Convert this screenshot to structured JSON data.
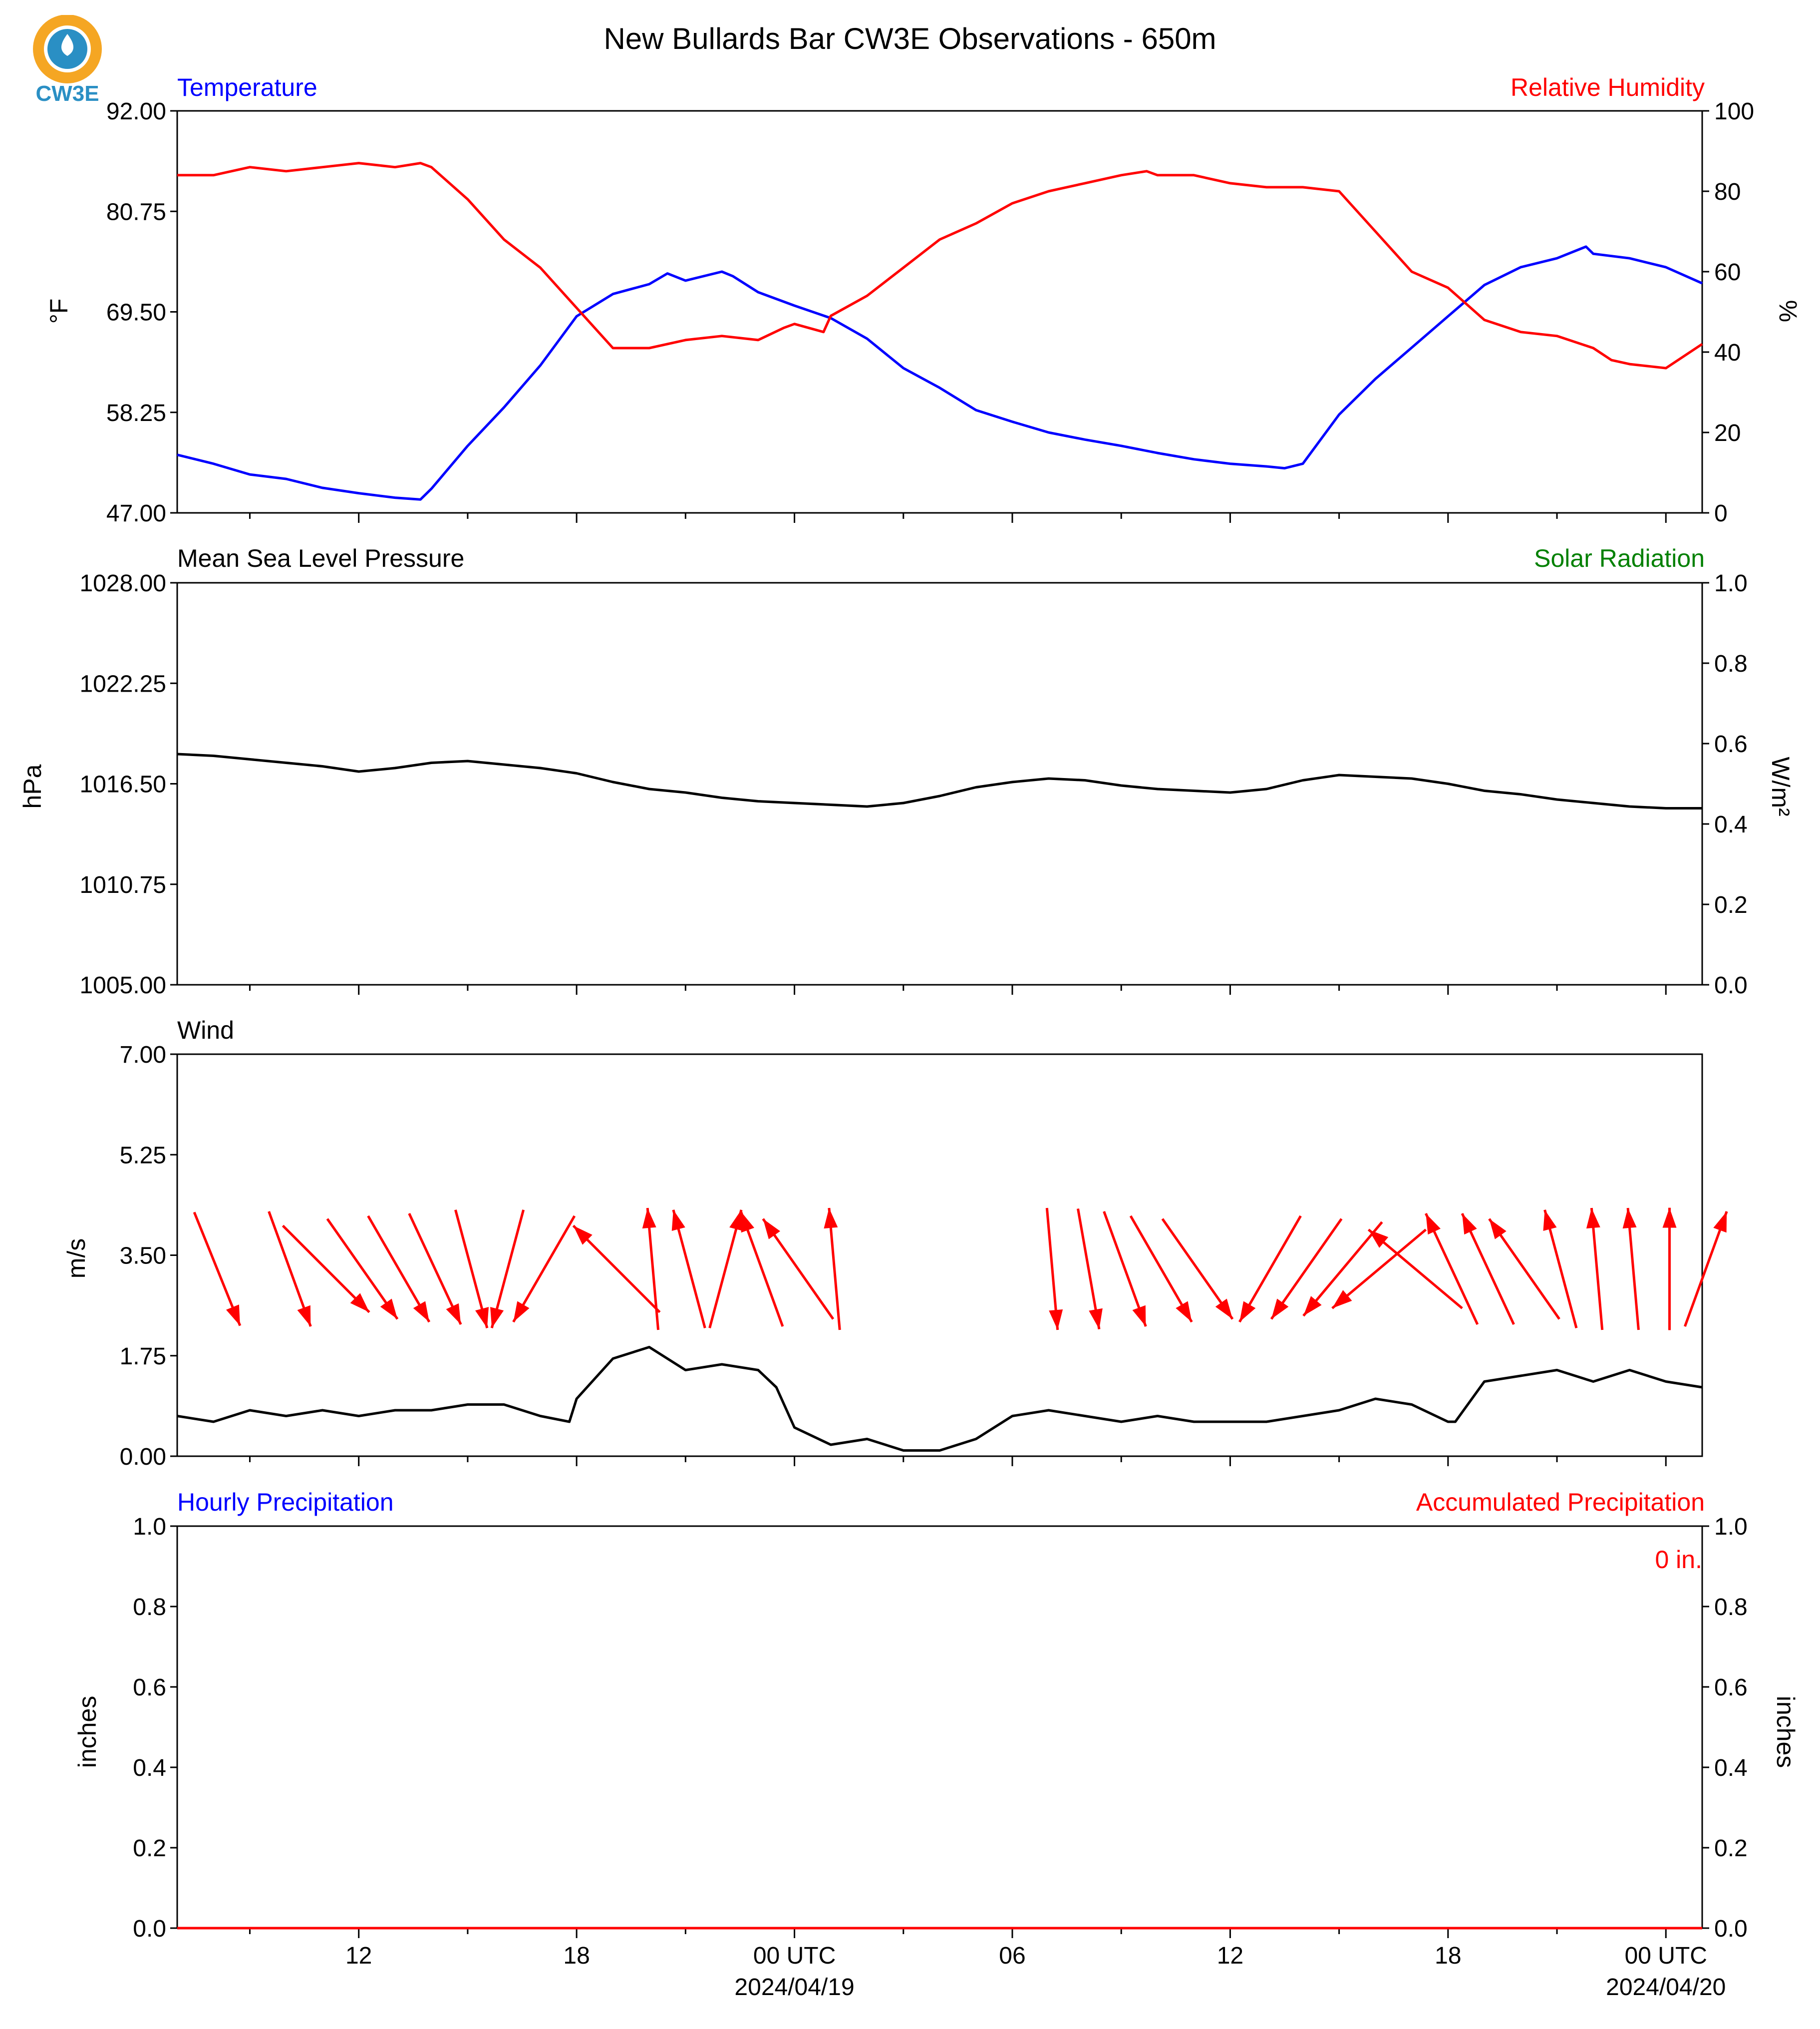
{
  "logo": {
    "text": "CW3E",
    "colors": {
      "ring": "#f5a623",
      "drop": "#2a8fc4",
      "text": "#2a8fc4"
    }
  },
  "title": "New Bullards Bar CW3E Observations - 650m",
  "colors": {
    "blue": "#0000ff",
    "red": "#ff0000",
    "black": "#000000",
    "green": "#008000",
    "bg": "#ffffff"
  },
  "panels": {
    "temp_rh": {
      "left_title": "Temperature",
      "right_title": "Relative Humidity",
      "left_ylabel": "°F",
      "right_ylabel": "%"
    },
    "pressure": {
      "left_title": "Mean Sea Level Pressure",
      "right_title": "Solar Radiation",
      "left_ylabel": "hPa",
      "right_ylabel": "W/m²"
    },
    "wind": {
      "left_title": "Wind",
      "left_ylabel": "m/s"
    },
    "precip": {
      "left_title": "Hourly Precipitation",
      "right_title": "Accumulated Precipitation",
      "left_ylabel": "inches",
      "right_ylabel": "inches",
      "accumulated_text": "0 in."
    }
  },
  "x_axis": {
    "tick_labels": [
      {
        "hour": 12,
        "label": "12"
      },
      {
        "hour": 18,
        "label": "18"
      },
      {
        "hour": 24,
        "label": "00 UTC",
        "sub": "2024/04/19"
      },
      {
        "hour": 30,
        "label": "06"
      },
      {
        "hour": 36,
        "label": "12"
      },
      {
        "hour": 42,
        "label": "18"
      },
      {
        "hour": 48,
        "label": "00 UTC",
        "sub": "2024/04/20"
      }
    ]
  },
  "chart_data": [
    {
      "type": "line",
      "panel": "temp_rh",
      "x_unit": "hours since 2024/04/18 00 UTC",
      "xlim": [
        7,
        49
      ],
      "ylim_left": [
        47.0,
        92.0
      ],
      "yticks_left": [
        "47.00",
        "58.25",
        "69.50",
        "80.75",
        "92.00"
      ],
      "ylim_right": [
        0,
        100
      ],
      "yticks_right": [
        "0",
        "20",
        "40",
        "60",
        "80",
        "100"
      ],
      "series": [
        {
          "name": "Temperature",
          "axis": "left",
          "color": "#0000ff",
          "x": [
            7,
            8,
            9,
            10,
            11,
            12,
            13,
            13.7,
            14,
            15,
            16,
            17,
            18,
            19,
            20,
            20.5,
            21,
            22,
            22.3,
            23,
            24,
            25,
            26,
            27,
            28,
            29,
            30,
            31,
            32,
            33,
            34,
            35,
            36,
            37,
            37.5,
            38,
            39,
            40,
            41,
            42,
            43,
            44,
            45,
            45.8,
            46,
            47,
            48,
            49
          ],
          "y": [
            53.5,
            52.5,
            51.3,
            50.8,
            49.8,
            49.2,
            48.7,
            48.5,
            49.7,
            54.5,
            58.8,
            63.5,
            69.0,
            71.5,
            72.6,
            73.8,
            73.0,
            74.0,
            73.5,
            71.7,
            70.2,
            68.8,
            66.5,
            63.2,
            61.0,
            58.5,
            57.2,
            56.0,
            55.2,
            54.5,
            53.7,
            53.0,
            52.5,
            52.2,
            52.0,
            52.5,
            58.0,
            62.0,
            65.5,
            69.0,
            72.5,
            74.5,
            75.5,
            76.8,
            76.0,
            75.5,
            74.5,
            72.7
          ]
        },
        {
          "name": "Relative Humidity",
          "axis": "right",
          "color": "#ff0000",
          "x": [
            7,
            8,
            9,
            10,
            11,
            12,
            13,
            13.7,
            14,
            15,
            16,
            17,
            18,
            19,
            20,
            21,
            22,
            23,
            23.7,
            24,
            24.8,
            25,
            26,
            27,
            28,
            29,
            30,
            31,
            32,
            33,
            33.7,
            34,
            35,
            36,
            37,
            38,
            39,
            40,
            41,
            42,
            43,
            44,
            45,
            46,
            46.5,
            47,
            48,
            49
          ],
          "y": [
            84,
            84,
            86,
            85,
            86,
            87,
            86,
            87,
            86,
            78,
            68,
            61,
            51,
            41,
            41,
            43,
            44,
            43,
            46,
            47,
            45,
            49,
            54,
            61,
            68,
            72,
            77,
            80,
            82,
            84,
            85,
            84,
            84,
            82,
            81,
            81,
            80,
            70,
            60,
            56,
            48,
            45,
            44,
            41,
            38,
            37,
            36,
            42
          ]
        }
      ]
    },
    {
      "type": "line",
      "panel": "pressure",
      "xlim": [
        7,
        49
      ],
      "ylim_left": [
        1005.0,
        1028.0
      ],
      "yticks_left": [
        "1005.00",
        "1010.75",
        "1016.50",
        "1022.25",
        "1028.00"
      ],
      "ylim_right": [
        0.0,
        1.0
      ],
      "yticks_right": [
        "0.0",
        "0.2",
        "0.4",
        "0.6",
        "0.8",
        "1.0"
      ],
      "series": [
        {
          "name": "Mean Sea Level Pressure",
          "axis": "left",
          "color": "#000000",
          "x": [
            7,
            8,
            9,
            10,
            11,
            12,
            13,
            14,
            15,
            16,
            17,
            18,
            19,
            20,
            21,
            22,
            23,
            24,
            25,
            26,
            27,
            28,
            29,
            30,
            31,
            32,
            33,
            34,
            35,
            36,
            37,
            38,
            39,
            40,
            41,
            42,
            43,
            44,
            45,
            46,
            47,
            48,
            49
          ],
          "y": [
            1018.2,
            1018.1,
            1017.9,
            1017.7,
            1017.5,
            1017.2,
            1017.4,
            1017.7,
            1017.8,
            1017.6,
            1017.4,
            1017.1,
            1016.6,
            1016.2,
            1016.0,
            1015.7,
            1015.5,
            1015.4,
            1015.3,
            1015.2,
            1015.4,
            1015.8,
            1016.3,
            1016.6,
            1016.8,
            1016.7,
            1016.4,
            1016.2,
            1016.1,
            1016.0,
            1016.2,
            1016.7,
            1017.0,
            1016.9,
            1016.8,
            1016.5,
            1016.1,
            1015.9,
            1015.6,
            1015.4,
            1015.2,
            1015.1,
            1015.1
          ]
        }
      ]
    },
    {
      "type": "line",
      "panel": "wind",
      "xlim": [
        7,
        49
      ],
      "ylim": [
        0.0,
        7.0
      ],
      "yticks": [
        "0.00",
        "1.75",
        "3.50",
        "5.25",
        "7.00"
      ],
      "series": [
        {
          "name": "Wind",
          "color": "#000000",
          "x": [
            7,
            8,
            9,
            10,
            11,
            12,
            13,
            14,
            15,
            16,
            17,
            17.8,
            18,
            19,
            20,
            21,
            22,
            23,
            23.5,
            24,
            25,
            26,
            27,
            28,
            29,
            30,
            31,
            32,
            33,
            34,
            35,
            36,
            37,
            38,
            39,
            40,
            41,
            42,
            42.2,
            43,
            44,
            45,
            46,
            47,
            48,
            49
          ],
          "y": [
            0.7,
            0.6,
            0.8,
            0.7,
            0.8,
            0.7,
            0.8,
            0.8,
            0.9,
            0.9,
            0.7,
            0.6,
            1.0,
            1.7,
            1.9,
            1.5,
            1.6,
            1.5,
            1.2,
            0.5,
            0.2,
            0.3,
            0.1,
            0.1,
            0.3,
            0.7,
            0.8,
            0.7,
            0.6,
            0.7,
            0.6,
            0.6,
            0.6,
            0.7,
            0.8,
            1.0,
            0.9,
            0.6,
            0.6,
            1.3,
            1.4,
            1.5,
            1.3,
            1.5,
            1.3,
            1.2
          ]
        }
      ],
      "wind_arrows": {
        "x": [
          7,
          9,
          10,
          11,
          12,
          13,
          14,
          15,
          16,
          18,
          19,
          20,
          21,
          22,
          23,
          24,
          30,
          31,
          32,
          33,
          34,
          36,
          37,
          38,
          39,
          40,
          41,
          42,
          43,
          44,
          45,
          46,
          47,
          48
        ],
        "angle_deg": [
          68,
          70,
          45,
          55,
          60,
          65,
          75,
          105,
          120,
          225,
          265,
          255,
          285,
          250,
          235,
          265,
          85,
          80,
          70,
          60,
          55,
          120,
          125,
          130,
          140,
          220,
          245,
          245,
          235,
          255,
          265,
          265,
          270,
          290
        ]
      }
    },
    {
      "type": "line",
      "panel": "precip",
      "xlim": [
        7,
        49
      ],
      "ylim_left": [
        0.0,
        1.0
      ],
      "yticks_left": [
        "0.0",
        "0.2",
        "0.4",
        "0.6",
        "0.8",
        "1.0"
      ],
      "ylim_right": [
        0.0,
        1.0
      ],
      "yticks_right": [
        "0.0",
        "0.2",
        "0.4",
        "0.6",
        "0.8",
        "1.0"
      ],
      "series": [
        {
          "name": "Hourly Precipitation",
          "axis": "left",
          "color": "#0000ff",
          "x": [
            7,
            49
          ],
          "y": [
            0,
            0
          ]
        },
        {
          "name": "Accumulated Precipitation",
          "axis": "right",
          "color": "#ff0000",
          "x": [
            7,
            49
          ],
          "y": [
            0,
            0
          ]
        }
      ]
    }
  ]
}
